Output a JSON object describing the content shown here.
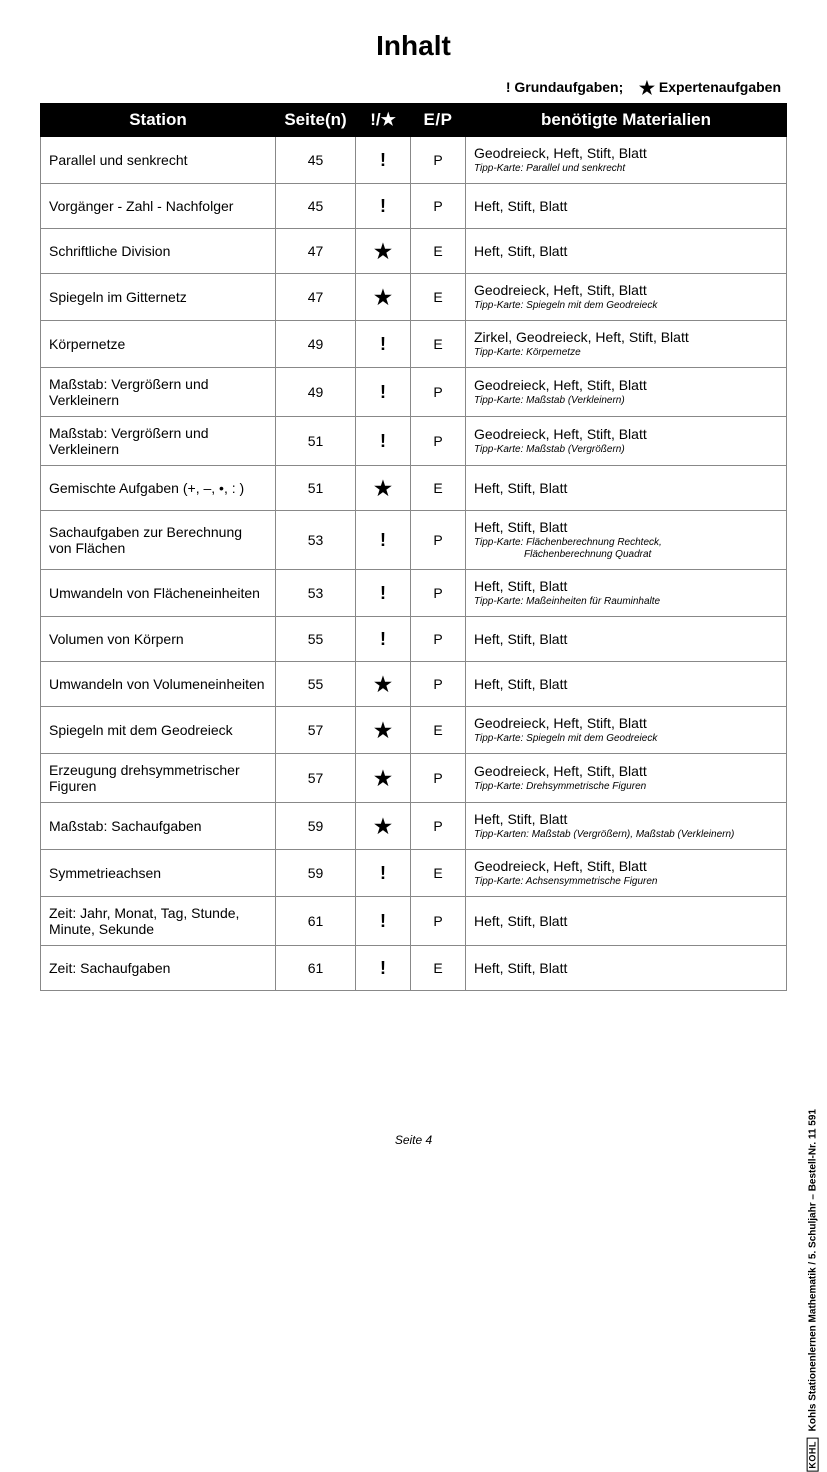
{
  "title": "Inhalt",
  "legend": {
    "grund_marker": "!",
    "grund_label": "Grundaufgaben;",
    "expert_marker": "★",
    "expert_label": "Expertenaufgaben"
  },
  "columns": {
    "station": "Station",
    "pages": "Seite(n)",
    "level": "!/★",
    "ep": "E/P",
    "materials": "benötigte Materialien"
  },
  "rows": [
    {
      "station": "Parallel und senkrecht",
      "pages": "45",
      "level": "!",
      "ep": "P",
      "materials": "Geodreieck, Heft, Stift, Blatt",
      "tip": "Tipp-Karte: Parallel und senkrecht"
    },
    {
      "station": "Vorgänger - Zahl - Nachfolger",
      "pages": "45",
      "level": "!",
      "ep": "P",
      "materials": "Heft, Stift, Blatt"
    },
    {
      "station": "Schriftliche Division",
      "pages": "47",
      "level": "★",
      "ep": "E",
      "materials": "Heft, Stift, Blatt"
    },
    {
      "station": "Spiegeln im Gitternetz",
      "pages": "47",
      "level": "★",
      "ep": "E",
      "materials": "Geodreieck, Heft, Stift, Blatt",
      "tip": "Tipp-Karte: Spiegeln mit dem Geodreieck"
    },
    {
      "station": "Körpernetze",
      "pages": "49",
      "level": "!",
      "ep": "E",
      "materials": "Zirkel, Geodreieck, Heft, Stift, Blatt",
      "tip": "Tipp-Karte: Körpernetze"
    },
    {
      "station": "Maßstab: Vergrößern und Verkleinern",
      "pages": "49",
      "level": "!",
      "ep": "P",
      "materials": "Geodreieck, Heft, Stift, Blatt",
      "tip": "Tipp-Karte: Maßstab (Verkleinern)"
    },
    {
      "station": "Maßstab: Vergrößern und Verkleinern",
      "pages": "51",
      "level": "!",
      "ep": "P",
      "materials": "Geodreieck, Heft, Stift, Blatt",
      "tip": "Tipp-Karte: Maßstab (Vergrößern)"
    },
    {
      "station": "Gemischte Aufgaben (+, –, •, : )",
      "pages": "51",
      "level": "★",
      "ep": "E",
      "materials": "Heft, Stift, Blatt"
    },
    {
      "station": "Sachaufgaben zur Berechnung von Flächen",
      "pages": "53",
      "level": "!",
      "ep": "P",
      "materials": "Heft, Stift, Blatt",
      "tip": "Tipp-Karte: Flächenberechnung Rechteck,",
      "tip2": "Flächenberechnung Quadrat"
    },
    {
      "station": "Umwandeln von Flächeneinheiten",
      "pages": "53",
      "level": "!",
      "ep": "P",
      "materials": "Heft, Stift, Blatt",
      "tip": "Tipp-Karte: Maßeinheiten für Rauminhalte"
    },
    {
      "station": "Volumen von Körpern",
      "pages": "55",
      "level": "!",
      "ep": "P",
      "materials": "Heft, Stift, Blatt"
    },
    {
      "station": "Umwandeln von Volumeneinheiten",
      "pages": "55",
      "level": "★",
      "ep": "P",
      "materials": "Heft, Stift, Blatt"
    },
    {
      "station": "Spiegeln mit dem Geodreieck",
      "pages": "57",
      "level": "★",
      "ep": "E",
      "materials": "Geodreieck, Heft, Stift, Blatt",
      "tip": "Tipp-Karte: Spiegeln mit dem Geodreieck"
    },
    {
      "station": "Erzeugung drehsymmetrischer Figuren",
      "pages": "57",
      "level": "★",
      "ep": "P",
      "materials": "Geodreieck, Heft, Stift, Blatt",
      "tip": "Tipp-Karte: Drehsymmetrische Figuren"
    },
    {
      "station": "Maßstab: Sachaufgaben",
      "pages": "59",
      "level": "★",
      "ep": "P",
      "materials": "Heft, Stift, Blatt",
      "tip": "Tipp-Karten: Maßstab (Vergrößern), Maßstab (Verkleinern)"
    },
    {
      "station": "Symmetrieachsen",
      "pages": "59",
      "level": "!",
      "ep": "E",
      "materials": "Geodreieck, Heft, Stift, Blatt",
      "tip": "Tipp-Karte: Achsensymmetrische Figuren"
    },
    {
      "station": "Zeit: Jahr, Monat, Tag, Stunde, Minute, Sekunde",
      "pages": "61",
      "level": "!",
      "ep": "P",
      "materials": "Heft, Stift, Blatt"
    },
    {
      "station": "Zeit: Sachaufgaben",
      "pages": "61",
      "level": "!",
      "ep": "E",
      "materials": "Heft, Stift, Blatt"
    }
  ],
  "footer": {
    "page_label": "Seite 4",
    "side_logo": "KOHL",
    "side_text": "Kohls Stationenlernen Mathematik  /   5. Schuljahr     –     Bestell-Nr. 11 591"
  }
}
